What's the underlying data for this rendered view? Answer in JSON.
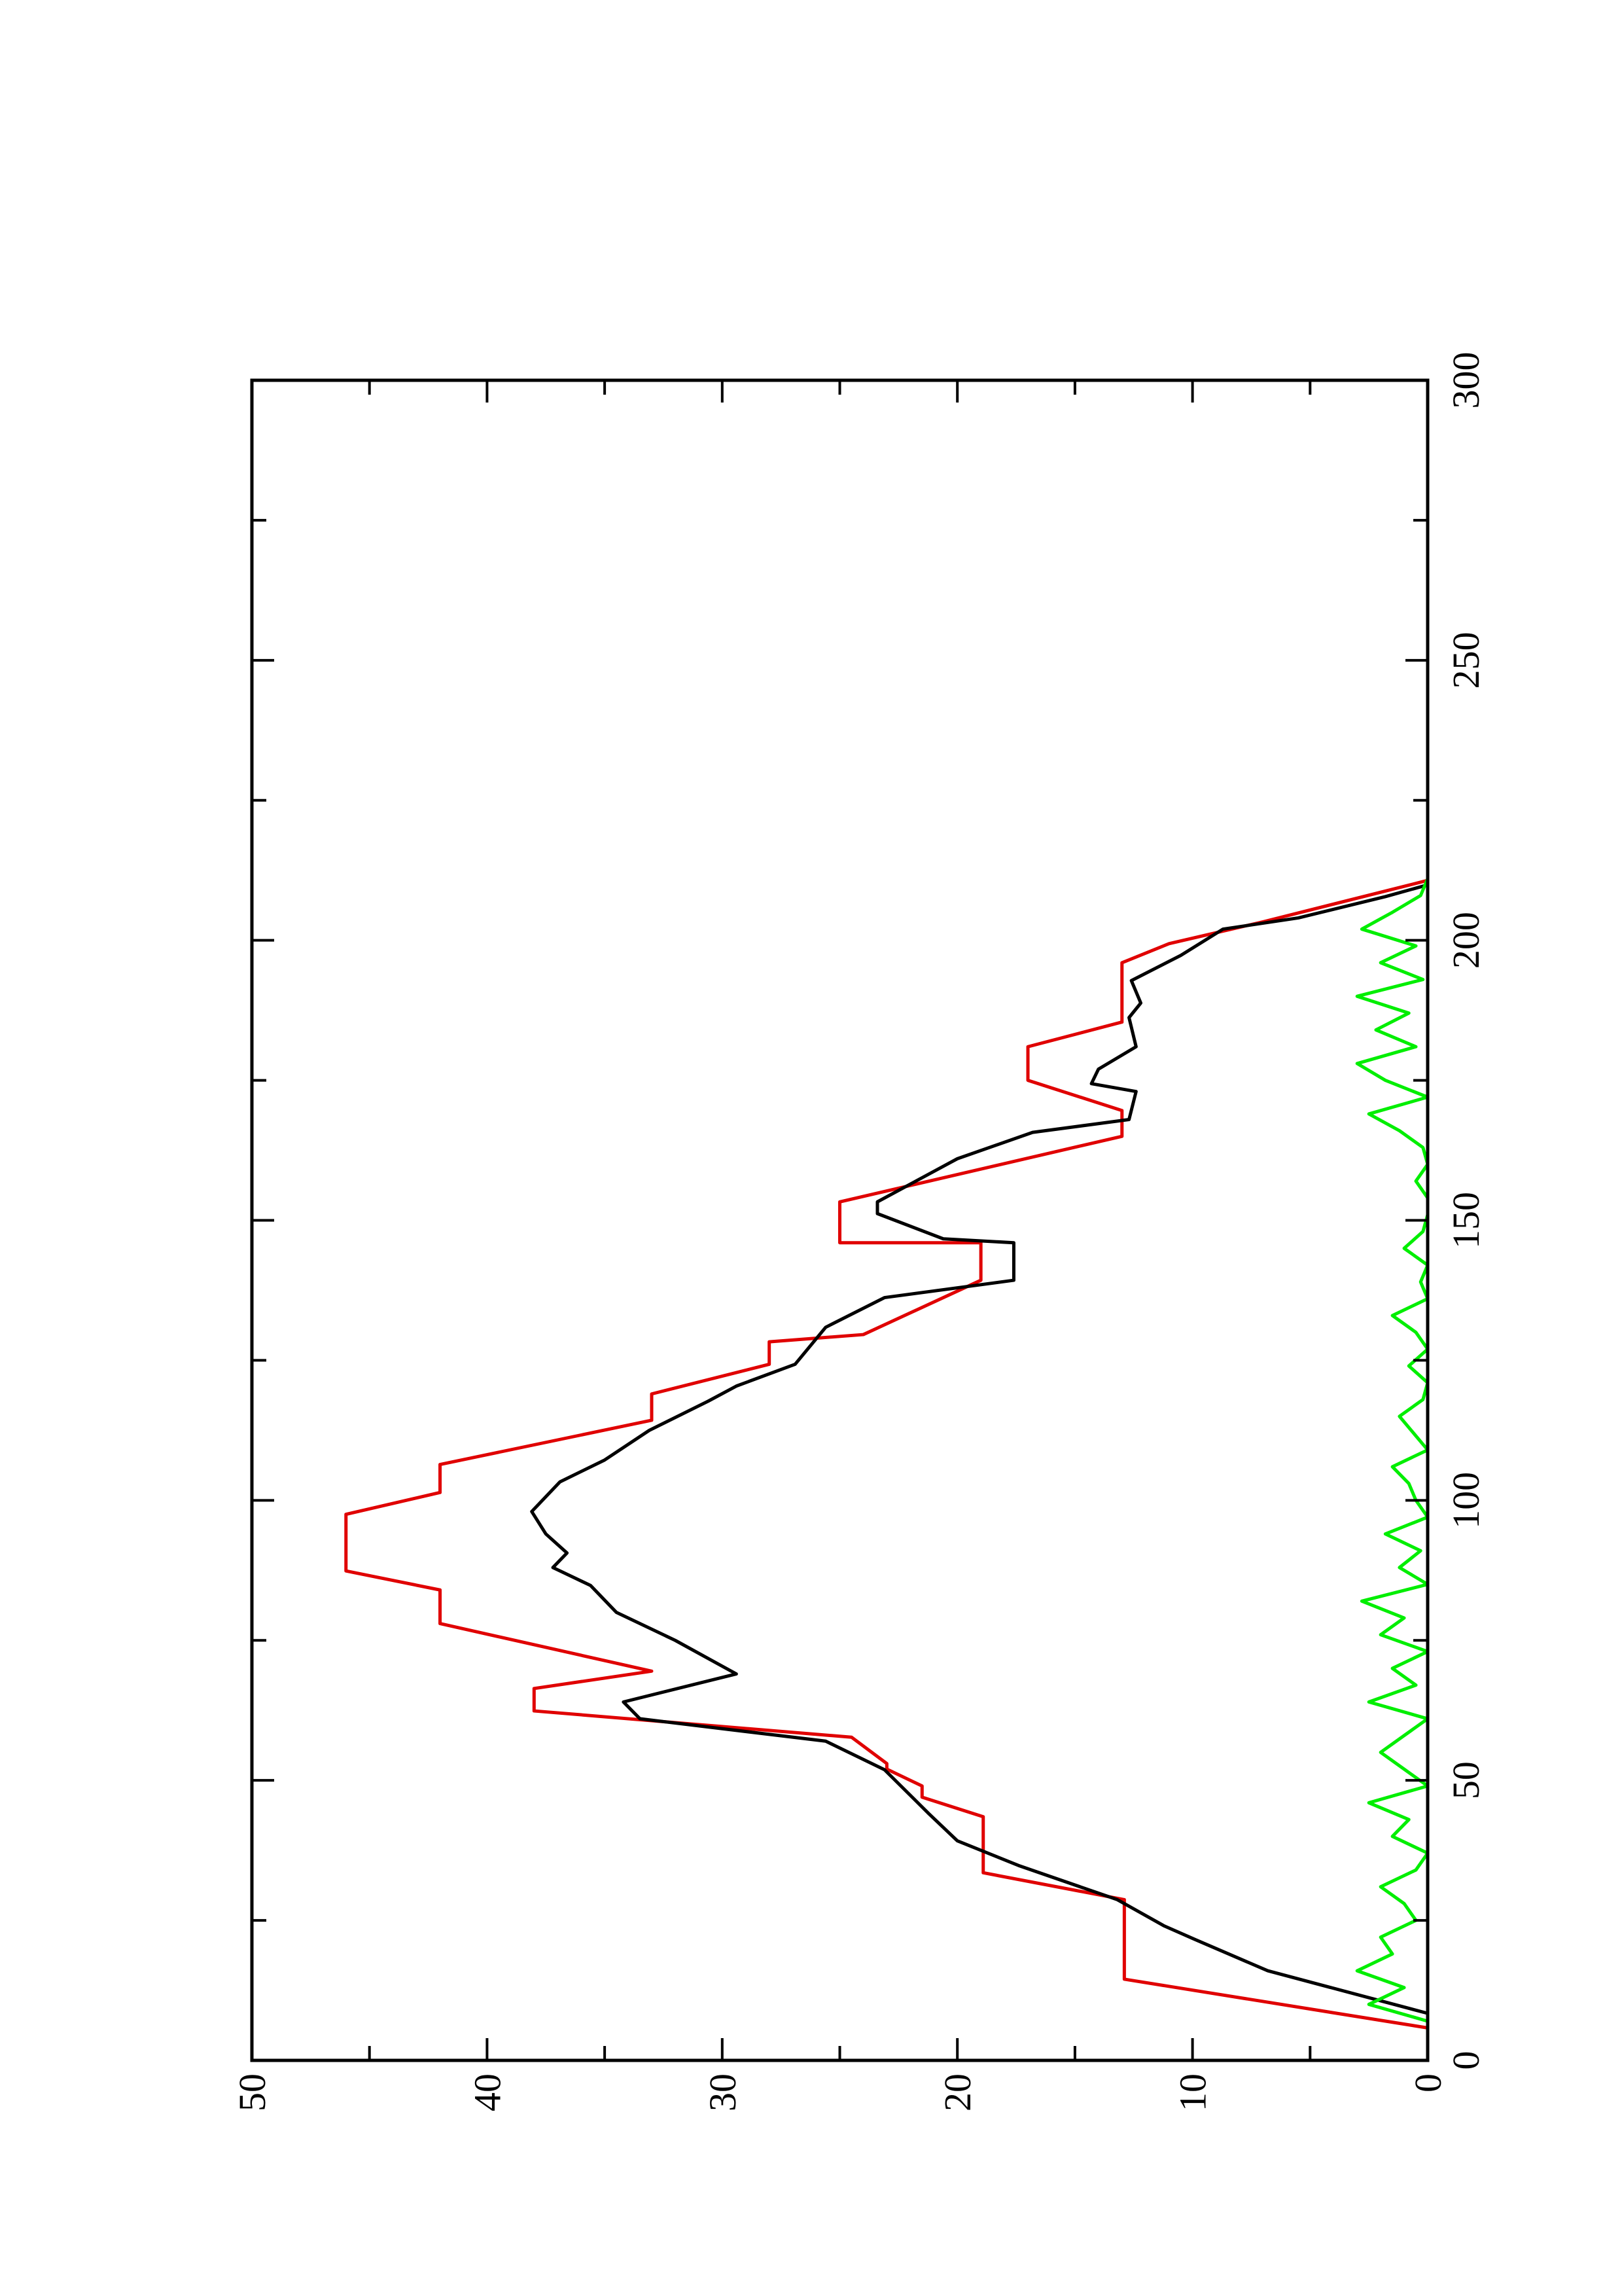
{
  "chart_data": {
    "type": "line",
    "xlim": [
      0,
      300
    ],
    "xticks": [
      0,
      50,
      100,
      150,
      200,
      250,
      300
    ],
    "ylim": [
      0,
      50
    ],
    "yticks": [
      0,
      10,
      20,
      30,
      40,
      50
    ],
    "rotated": true,
    "series": [
      {
        "color": "#e00000",
        "x": [
          5.8,
          14.5,
          28.7,
          33.5,
          43.5,
          47,
          49,
          52,
          53,
          57.7,
          62.4,
          66.4,
          69.5,
          78,
          84,
          87.4,
          97.5,
          101.4,
          106.4,
          114.3,
          119,
          124.3,
          128.3,
          129.6,
          139.3,
          146,
          146,
          153.3,
          165,
          169.6,
          175,
          181,
          185.4,
          196,
          199.4,
          203.3,
          210.7
        ],
        "values": [
          0,
          12.9,
          12.9,
          18.9,
          18.9,
          21.5,
          21.5,
          23,
          23,
          24.5,
          38,
          38,
          33,
          42,
          42,
          46,
          46,
          42,
          42,
          33,
          33,
          28,
          28,
          24,
          19,
          19,
          25,
          25,
          13,
          13,
          17,
          17,
          13,
          13,
          11,
          7,
          0
        ]
      },
      {
        "color": "#000000",
        "x": [
          8.4,
          16,
          21.6,
          24,
          28.7,
          34.8,
          39.2,
          44,
          51.9,
          57,
          61,
          64,
          69,
          75,
          80,
          84.8,
          88,
          90.6,
          94,
          98,
          103.3,
          107.2,
          112.5,
          117.7,
          120.4,
          124.3,
          130.9,
          136.2,
          139.3,
          146,
          146.7,
          151.2,
          153.3,
          161,
          165.7,
          168,
          173,
          174.4,
          177,
          181,
          186.2,
          188.8,
          192.8,
          197.3,
          202,
          204,
          207.8,
          209.9
        ],
        "values": [
          0,
          6.8,
          9.9,
          11.2,
          13.2,
          17.4,
          20,
          21.2,
          23.1,
          25.6,
          33.5,
          34.2,
          29.4,
          32,
          34.5,
          35.6,
          37.2,
          36.6,
          37.5,
          38.1,
          36.9,
          35,
          33.1,
          30.6,
          29.4,
          26.9,
          25.6,
          23.1,
          17.6,
          17.6,
          20.6,
          23.4,
          23.4,
          20,
          16.8,
          12.7,
          12.4,
          14.3,
          14,
          12.4,
          12.7,
          12.2,
          12.6,
          10.5,
          8.7,
          5.5,
          1.8,
          0
        ]
      },
      {
        "color": "#00ee00",
        "x": [
          7,
          10,
          13,
          16,
          19,
          22,
          25,
          28,
          31,
          34,
          37,
          40,
          43,
          46,
          49,
          52,
          55,
          58,
          61,
          64,
          67,
          70,
          73,
          76,
          79,
          82,
          85,
          88,
          91,
          94,
          97,
          100,
          103,
          106,
          109,
          112,
          115,
          118,
          121,
          124,
          127,
          130,
          133,
          136,
          139,
          142,
          145,
          148,
          151,
          154,
          157,
          160,
          163,
          166,
          169,
          172,
          175,
          178,
          181,
          184,
          187,
          190,
          193,
          196,
          199,
          202,
          205,
          208,
          211
        ],
        "values": [
          0,
          2.5,
          1,
          3,
          1.5,
          2,
          0.5,
          1,
          2,
          0.5,
          0,
          1.5,
          0.8,
          2.5,
          0,
          1,
          2,
          1,
          0,
          2.5,
          0.5,
          1.5,
          0,
          2,
          1,
          2.8,
          0,
          1.2,
          0.3,
          1.8,
          0,
          0.5,
          0.8,
          1.5,
          0,
          0.6,
          1.2,
          0.2,
          0,
          0.8,
          0,
          0.5,
          1.5,
          0,
          0.3,
          0,
          1,
          0.2,
          0,
          0,
          0.5,
          0,
          0.2,
          1.2,
          2.5,
          0,
          1.8,
          3,
          0.5,
          2.2,
          0.8,
          3,
          0.2,
          2,
          0.5,
          2.8,
          1.5,
          0.3,
          0
        ]
      }
    ]
  }
}
